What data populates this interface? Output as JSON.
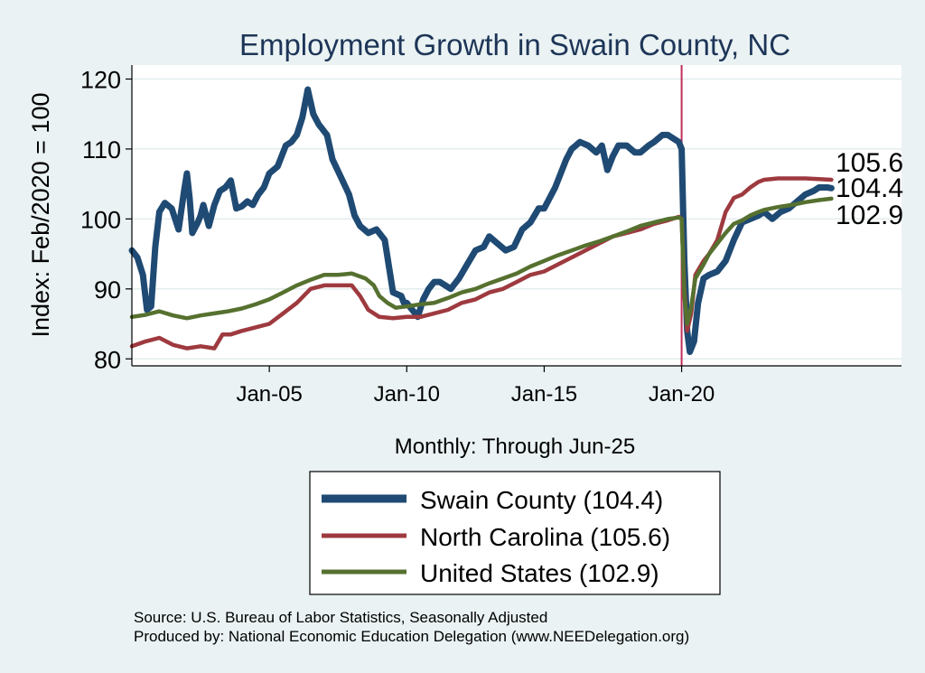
{
  "chart_data": {
    "type": "line",
    "title": "Employment Growth in Swain  County, NC",
    "ylabel": "Index: Feb/2020 = 100",
    "xlabel": "Monthly: Through Jun-25",
    "ylim": [
      79,
      122
    ],
    "xlim": [
      2000.0,
      2028.0
    ],
    "yticks": [
      80,
      90,
      100,
      110,
      120
    ],
    "xticks": [
      {
        "label": "Jan-05",
        "x": 2005.0
      },
      {
        "label": "Jan-10",
        "x": 2010.0
      },
      {
        "label": "Jan-15",
        "x": 2015.0
      },
      {
        "label": "Jan-20",
        "x": 2020.0
      }
    ],
    "reference_line_x": 2020.0,
    "grid": true,
    "legend_position": "bottom",
    "end_labels": [
      "105.6",
      "104.4",
      "102.9"
    ],
    "series": [
      {
        "name": "Swain  County",
        "legend_label": "Swain  County (104.4)",
        "color": "#1f4a73",
        "x": [
          2000.0,
          2000.2,
          2000.4,
          2000.55,
          2000.7,
          2000.85,
          2001.0,
          2001.2,
          2001.45,
          2001.7,
          2001.9,
          2002.0,
          2002.1,
          2002.2,
          2002.4,
          2002.5,
          2002.6,
          2002.8,
          2003.0,
          2003.2,
          2003.4,
          2003.6,
          2003.8,
          2004.0,
          2004.2,
          2004.4,
          2004.6,
          2004.8,
          2005.0,
          2005.3,
          2005.6,
          2005.8,
          2006.0,
          2006.2,
          2006.4,
          2006.6,
          2006.8,
          2006.9,
          2007.0,
          2007.1,
          2007.3,
          2007.6,
          2007.9,
          2008.1,
          2008.3,
          2008.6,
          2008.9,
          2009.2,
          2009.5,
          2009.8,
          2009.9,
          2010.0,
          2010.2,
          2010.4,
          2010.6,
          2010.8,
          2011.0,
          2011.2,
          2011.4,
          2011.6,
          2011.9,
          2012.2,
          2012.5,
          2012.8,
          2013.0,
          2013.3,
          2013.6,
          2013.9,
          2014.2,
          2014.5,
          2014.8,
          2015.0,
          2015.2,
          2015.4,
          2015.6,
          2015.8,
          2016.0,
          2016.3,
          2016.6,
          2016.9,
          2017.1,
          2017.3,
          2017.5,
          2017.7,
          2018.0,
          2018.3,
          2018.5,
          2018.8,
          2019.0,
          2019.3,
          2019.5,
          2019.7,
          2019.9,
          2020.0,
          2020.1,
          2020.2,
          2020.3,
          2020.45,
          2020.6,
          2020.8,
          2021.0,
          2021.3,
          2021.6,
          2021.9,
          2022.2,
          2022.5,
          2022.8,
          2023.0,
          2023.3,
          2023.6,
          2023.9,
          2024.2,
          2024.5,
          2024.8,
          2025.0,
          2025.3,
          2025.45
        ],
        "y": [
          95.5,
          94.5,
          92.0,
          87.0,
          87.5,
          96.0,
          101.0,
          102.3,
          101.5,
          98.5,
          104.0,
          106.5,
          103.0,
          98.0,
          99.5,
          100.5,
          102.0,
          99.0,
          102.0,
          104.0,
          104.5,
          105.5,
          101.5,
          101.8,
          102.5,
          102.0,
          103.5,
          104.5,
          106.5,
          107.5,
          110.5,
          111.0,
          112.0,
          114.5,
          118.5,
          115.0,
          113.5,
          113.0,
          112.5,
          112.0,
          108.5,
          106.0,
          103.5,
          100.5,
          99.0,
          98.0,
          98.5,
          97.0,
          89.5,
          89.0,
          88.0,
          88.0,
          87.0,
          86.0,
          88.5,
          90.0,
          91.0,
          91.0,
          90.5,
          90.0,
          91.5,
          93.5,
          95.5,
          96.0,
          97.5,
          96.5,
          95.5,
          96.0,
          98.5,
          99.5,
          101.5,
          101.5,
          103.0,
          104.5,
          106.5,
          108.5,
          110.0,
          111.0,
          110.5,
          109.5,
          110.5,
          107.0,
          109.0,
          110.5,
          110.5,
          109.5,
          109.5,
          110.5,
          111.0,
          112.0,
          112.0,
          111.5,
          111.0,
          110.0,
          94.0,
          84.0,
          81.0,
          82.5,
          88.0,
          91.5,
          92.0,
          92.5,
          94.0,
          97.0,
          99.5,
          100.0,
          100.5,
          101.0,
          100.0,
          101.0,
          101.5,
          102.5,
          103.5,
          104.0,
          104.5,
          104.5,
          104.4
        ]
      },
      {
        "name": "North Carolina",
        "legend_label": "North Carolina (105.6)",
        "color": "#9e3a3f",
        "x": [
          2000.0,
          2000.5,
          2001.0,
          2001.5,
          2002.0,
          2002.5,
          2003.0,
          2003.3,
          2003.6,
          2004.0,
          2004.5,
          2005.0,
          2005.5,
          2006.0,
          2006.5,
          2007.0,
          2007.5,
          2008.0,
          2008.3,
          2008.6,
          2009.0,
          2009.5,
          2010.0,
          2010.5,
          2011.0,
          2011.5,
          2012.0,
          2012.5,
          2013.0,
          2013.5,
          2014.0,
          2014.5,
          2015.0,
          2015.5,
          2016.0,
          2016.5,
          2017.0,
          2017.5,
          2018.0,
          2018.5,
          2019.0,
          2019.5,
          2019.9,
          2020.0,
          2020.1,
          2020.2,
          2020.35,
          2020.5,
          2020.8,
          2021.0,
          2021.3,
          2021.6,
          2021.9,
          2022.2,
          2022.5,
          2022.8,
          2023.0,
          2023.5,
          2024.0,
          2024.5,
          2025.0,
          2025.45
        ],
        "y": [
          81.8,
          82.5,
          83.0,
          82.0,
          81.5,
          81.8,
          81.5,
          83.5,
          83.5,
          84.0,
          84.5,
          85.0,
          86.5,
          88.0,
          90.0,
          90.5,
          90.5,
          90.5,
          89.0,
          87.0,
          86.0,
          85.8,
          86.0,
          86.0,
          86.5,
          87.0,
          88.0,
          88.5,
          89.5,
          90.0,
          91.0,
          92.0,
          92.5,
          93.5,
          94.5,
          95.5,
          96.5,
          97.5,
          98.0,
          98.5,
          99.3,
          99.8,
          100.3,
          100.0,
          90.0,
          84.0,
          86.5,
          92.0,
          94.0,
          95.0,
          97.0,
          101.0,
          103.0,
          103.5,
          104.5,
          105.3,
          105.6,
          105.8,
          105.8,
          105.8,
          105.7,
          105.6
        ]
      },
      {
        "name": "United States",
        "legend_label": "United States (102.9)",
        "color": "#56712f",
        "x": [
          2000.0,
          2000.5,
          2001.0,
          2001.5,
          2002.0,
          2002.5,
          2003.0,
          2003.5,
          2004.0,
          2004.5,
          2005.0,
          2005.5,
          2006.0,
          2006.5,
          2007.0,
          2007.5,
          2008.0,
          2008.5,
          2008.8,
          2009.0,
          2009.3,
          2009.6,
          2010.0,
          2010.5,
          2011.0,
          2011.5,
          2012.0,
          2012.5,
          2013.0,
          2013.5,
          2014.0,
          2014.5,
          2015.0,
          2015.5,
          2016.0,
          2016.5,
          2017.0,
          2017.5,
          2018.0,
          2018.5,
          2019.0,
          2019.5,
          2019.9,
          2020.0,
          2020.1,
          2020.2,
          2020.35,
          2020.5,
          2020.8,
          2021.0,
          2021.3,
          2021.6,
          2021.9,
          2022.2,
          2022.5,
          2022.8,
          2023.0,
          2023.5,
          2024.0,
          2024.5,
          2025.0,
          2025.45
        ],
        "y": [
          86.0,
          86.3,
          86.8,
          86.2,
          85.8,
          86.2,
          86.5,
          86.8,
          87.2,
          87.8,
          88.5,
          89.5,
          90.5,
          91.3,
          92.0,
          92.0,
          92.2,
          91.5,
          90.5,
          89.0,
          88.0,
          87.3,
          87.5,
          87.8,
          88.0,
          88.7,
          89.5,
          90.0,
          90.8,
          91.5,
          92.2,
          93.2,
          94.0,
          94.8,
          95.5,
          96.2,
          96.8,
          97.5,
          98.2,
          99.0,
          99.5,
          100.0,
          100.2,
          100.0,
          89.0,
          85.0,
          87.5,
          91.5,
          93.5,
          95.0,
          96.5,
          98.0,
          99.3,
          99.8,
          100.5,
          101.0,
          101.3,
          101.7,
          102.0,
          102.4,
          102.7,
          102.9
        ]
      }
    ]
  },
  "source_line": "Source: U.S. Bureau of Labor Statistics, Seasonally Adjusted",
  "produced_line": "Produced by: National Economic Education Delegation (www.NEEDelegation.org)"
}
